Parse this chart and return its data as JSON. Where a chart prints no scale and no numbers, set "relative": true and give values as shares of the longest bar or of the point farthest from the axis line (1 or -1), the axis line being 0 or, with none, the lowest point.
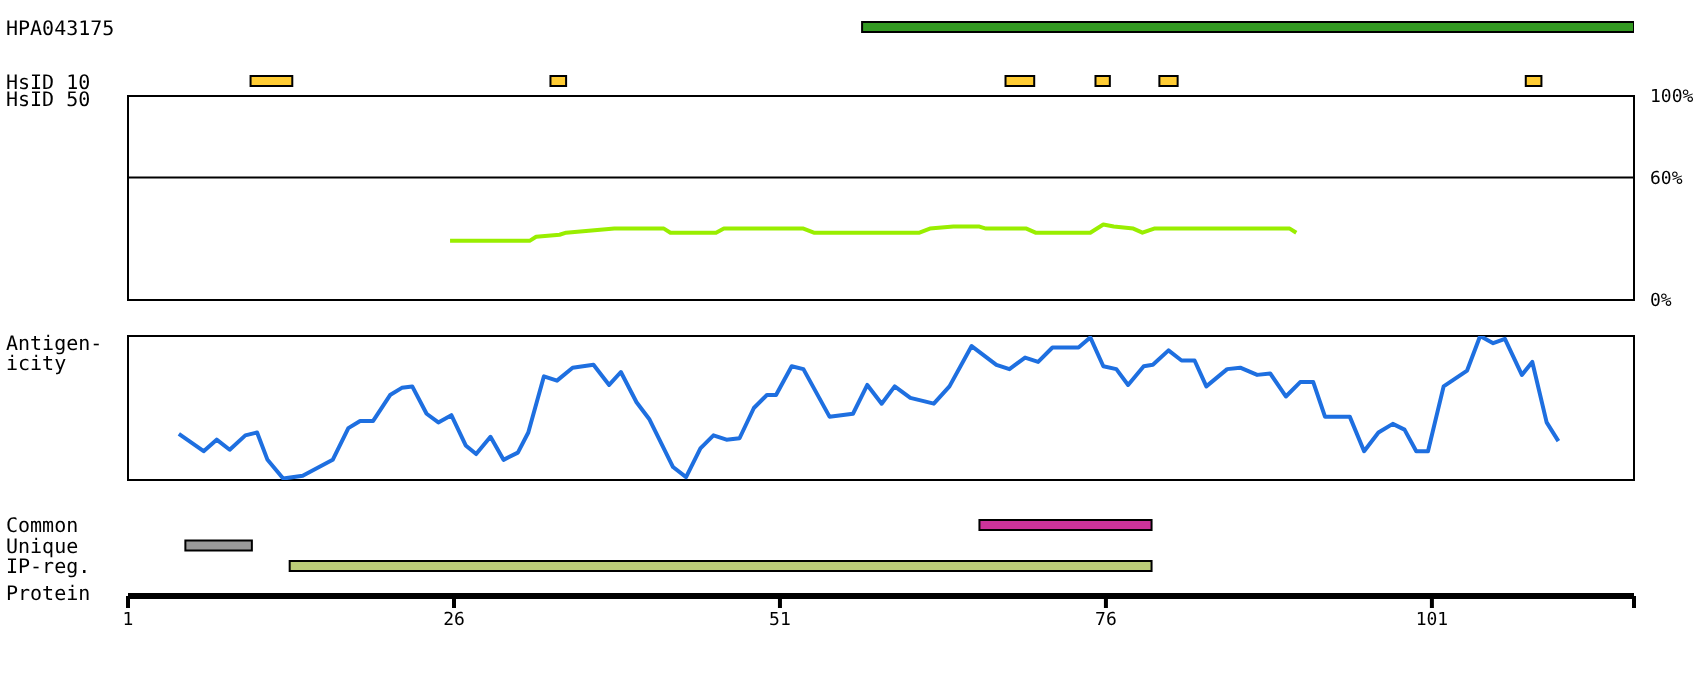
{
  "chart_data": [
    {
      "type": "bar",
      "orientation": "horizontal",
      "categories": [
        "HPA043175",
        "HsID 10"
      ],
      "xlim": [
        1,
        116.5
      ],
      "tick_labels": "y",
      "series": [
        {
          "color": "#339922",
          "values": [
            59.2,
            null
          ],
          "base": [
            57.3,
            null
          ]
        },
        {
          "color": "#ffcc33",
          "values": [
            null,
            3.2
          ],
          "base": [
            null,
            10.4
          ]
        },
        {
          "color": "#ffcc33",
          "values": [
            null,
            1.2
          ],
          "base": [
            null,
            33.4
          ]
        },
        {
          "color": "#ffcc33",
          "values": [
            null,
            2.2
          ],
          "base": [
            null,
            68.3
          ]
        },
        {
          "color": "#ffcc33",
          "values": [
            null,
            1.1
          ],
          "base": [
            null,
            75.2
          ]
        },
        {
          "color": "#ffcc33",
          "values": [
            null,
            1.4
          ],
          "base": [
            null,
            80.1
          ]
        },
        {
          "color": "#ffcc33",
          "values": [
            null,
            1.2
          ],
          "base": [
            null,
            108.2
          ]
        }
      ]
    },
    {
      "type": "line",
      "ylabel": "HsID 50",
      "xlim": [
        1,
        116.5
      ],
      "ylim": [
        0,
        100
      ],
      "yticks": [
        {
          "value": 0,
          "label": "0%"
        },
        {
          "value": 60,
          "label": "60%"
        },
        {
          "value": 100,
          "label": "100%"
        }
      ],
      "tick_labels": "y",
      "ref_lines": [
        {
          "axis": "y",
          "value": 60,
          "color": "#000000"
        }
      ],
      "series": [
        {
          "color": "#99ee00",
          "x": [
            25.7,
            31.8,
            32.3,
            34.1,
            34.6,
            38.3,
            42.1,
            42.6,
            46.1,
            46.7,
            52.8,
            53.6,
            61.7,
            62.5,
            64.3,
            66.3,
            66.8,
            69.9,
            70.6,
            74.8,
            75.8,
            76.6,
            78.1,
            78.8,
            79.7,
            90.1,
            90.6
          ],
          "values": [
            29,
            29,
            31,
            32,
            33,
            35,
            35,
            33,
            33,
            35,
            35,
            33,
            33,
            35,
            36,
            36,
            35,
            35,
            33,
            33,
            37,
            36,
            35,
            33,
            35,
            35,
            33
          ]
        }
      ]
    },
    {
      "type": "line",
      "ylabel": "Antigen-\nicity",
      "relative": true,
      "xlim": [
        1,
        116.5
      ],
      "tick_labels": false,
      "series": [
        {
          "color": "#1e6fe0",
          "x": [
            4.9,
            6.8,
            7.8,
            8.8,
            10,
            10.9,
            11.7,
            12.9,
            14.4,
            16.7,
            17.9,
            18.8,
            19.8,
            21.1,
            22,
            22.8,
            23.9,
            24.8,
            25.8,
            26.9,
            27.7,
            28.8,
            29.8,
            30.9,
            31.7,
            32.9,
            33.9,
            35.1,
            36.7,
            37.9,
            38.8,
            40,
            41,
            42.8,
            43.8,
            44.9,
            45.9,
            46.9,
            47.9,
            49,
            50,
            50.7,
            51.9,
            52.8,
            54.8,
            56.6,
            57.7,
            58.8,
            59.8,
            61,
            62.8,
            64,
            65.7,
            67.6,
            68.6,
            69.8,
            70.8,
            71.9,
            73.9,
            74.8,
            75.8,
            76.8,
            77.7,
            78.9,
            79.6,
            80.8,
            81.8,
            82.8,
            83.7,
            85.3,
            86.3,
            87.6,
            88.6,
            89.8,
            90.9,
            91.9,
            92.8,
            94.7,
            95.8,
            96.9,
            98,
            98.9,
            99.8,
            100.7,
            101.9,
            103.7,
            104.7,
            105.7,
            106.6,
            107.9,
            108.7,
            109.8,
            110.7
          ],
          "values": [
            0.32,
            0.2,
            0.28,
            0.21,
            0.31,
            0.33,
            0.14,
            0.01,
            0.03,
            0.14,
            0.36,
            0.41,
            0.41,
            0.59,
            0.64,
            0.65,
            0.46,
            0.4,
            0.45,
            0.24,
            0.18,
            0.3,
            0.14,
            0.19,
            0.33,
            0.72,
            0.69,
            0.78,
            0.8,
            0.66,
            0.75,
            0.54,
            0.42,
            0.09,
            0.02,
            0.22,
            0.31,
            0.28,
            0.29,
            0.5,
            0.59,
            0.59,
            0.79,
            0.77,
            0.44,
            0.46,
            0.66,
            0.53,
            0.65,
            0.57,
            0.53,
            0.65,
            0.93,
            0.8,
            0.77,
            0.85,
            0.82,
            0.92,
            0.92,
            0.99,
            0.79,
            0.77,
            0.66,
            0.79,
            0.8,
            0.9,
            0.83,
            0.83,
            0.65,
            0.77,
            0.78,
            0.73,
            0.74,
            0.58,
            0.68,
            0.68,
            0.44,
            0.44,
            0.2,
            0.33,
            0.39,
            0.35,
            0.2,
            0.2,
            0.65,
            0.76,
            1,
            0.95,
            0.98,
            0.73,
            0.82,
            0.4,
            0.27
          ]
        }
      ]
    },
    {
      "type": "bar",
      "orientation": "horizontal",
      "categories": [
        "Common",
        "Unique",
        "IP-reg."
      ],
      "xlabel": "Protein",
      "xlim": [
        1,
        116.5
      ],
      "xticks": [
        1,
        26,
        51,
        76,
        101,
        {
          "value": 116.5,
          "label": null
        }
      ],
      "series": [
        {
          "colors": [
            "#cc3399",
            "#999999",
            "#bbcc77"
          ],
          "values": [
            13.2,
            5.1,
            66.1
          ],
          "base": [
            66.3,
            5.4,
            13.4
          ]
        }
      ]
    }
  ]
}
